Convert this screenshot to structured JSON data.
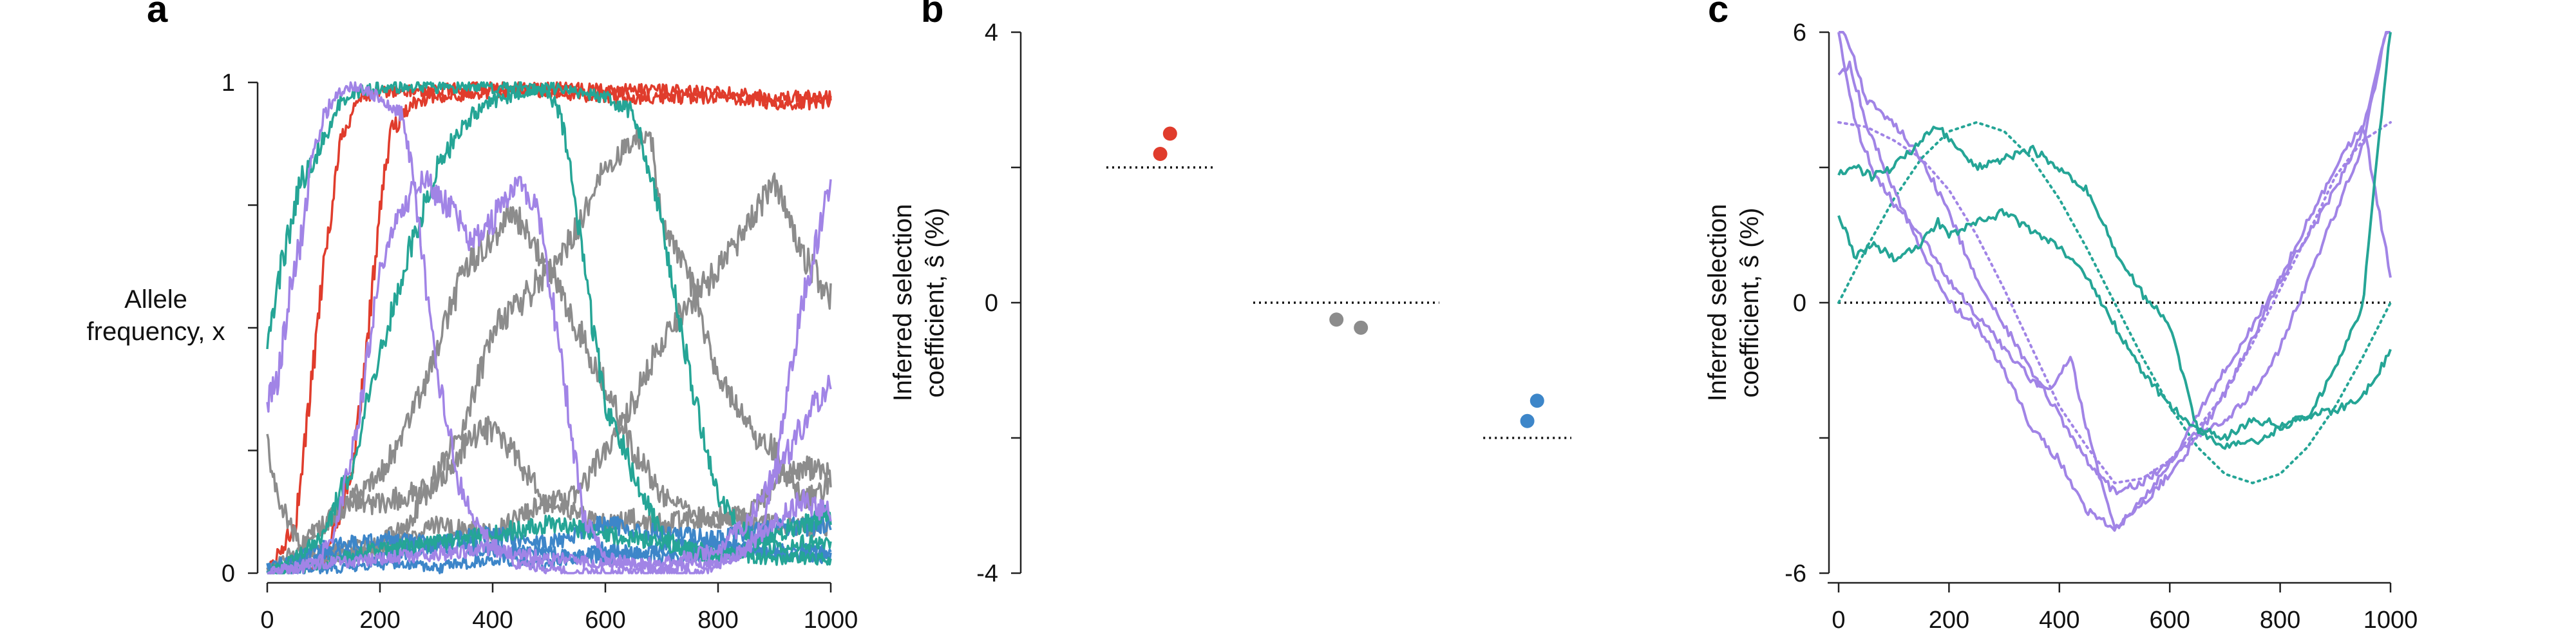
{
  "colors": {
    "red": "#e03c2c",
    "gray": "#8c8c8c",
    "blue": "#3d86c9",
    "teal": "#25a596",
    "purple": "#a184e6"
  },
  "chart_data": [
    {
      "panel": "a",
      "type": "line",
      "ylabel_lines": [
        "Allele",
        "frequency, x"
      ],
      "xlim": [
        0,
        1000
      ],
      "ylim": [
        0,
        1
      ],
      "x_ticks": [
        0,
        200,
        400,
        600,
        800,
        1000
      ],
      "y_ticks": [
        0,
        1
      ],
      "series": [
        {
          "color": "red",
          "x": [
            0,
            50,
            70,
            100,
            130,
            160,
            200,
            300,
            400,
            500,
            600,
            700,
            800,
            900,
            1000
          ],
          "y": [
            0,
            0.1,
            0.3,
            0.62,
            0.88,
            0.97,
            0.98,
            0.985,
            0.99,
            0.99,
            0.985,
            0.985,
            0.98,
            0.97,
            0.97
          ]
        },
        {
          "color": "red",
          "x": [
            0,
            100,
            150,
            180,
            200,
            220,
            260,
            300,
            400,
            500,
            600,
            700,
            800,
            900,
            1000
          ],
          "y": [
            0,
            0.02,
            0.2,
            0.5,
            0.75,
            0.9,
            0.96,
            0.97,
            0.98,
            0.98,
            0.97,
            0.97,
            0.97,
            0.96,
            0.96
          ]
        },
        {
          "color": "gray",
          "x": [
            0,
            20,
            60,
            100,
            150,
            200,
            250,
            300,
            350,
            400,
            450,
            500,
            550,
            600,
            650,
            700,
            750,
            800,
            850,
            900,
            950,
            1000
          ],
          "y": [
            0.26,
            0.15,
            0.05,
            0.1,
            0.15,
            0.14,
            0.16,
            0.18,
            0.26,
            0.3,
            0.22,
            0.14,
            0.16,
            0.25,
            0.35,
            0.47,
            0.55,
            0.62,
            0.7,
            0.8,
            0.65,
            0.56
          ]
        },
        {
          "color": "gray",
          "x": [
            0,
            100,
            150,
            200,
            250,
            300,
            350,
            400,
            450,
            500,
            550,
            600,
            650,
            680,
            700,
            750,
            800,
            850,
            900,
            950,
            1000
          ],
          "y": [
            0,
            0.05,
            0.05,
            0.06,
            0.1,
            0.2,
            0.3,
            0.5,
            0.55,
            0.62,
            0.7,
            0.83,
            0.88,
            0.9,
            0.72,
            0.6,
            0.4,
            0.3,
            0.25,
            0.15,
            0.18
          ]
        },
        {
          "color": "gray",
          "x": [
            0,
            100,
            200,
            250,
            300,
            350,
            400,
            430,
            460,
            500,
            550,
            600,
            650,
            700,
            750,
            800,
            850,
            900,
            950,
            1000
          ],
          "y": [
            0,
            0.1,
            0.2,
            0.3,
            0.45,
            0.62,
            0.68,
            0.74,
            0.7,
            0.62,
            0.5,
            0.38,
            0.25,
            0.16,
            0.12,
            0.1,
            0.12,
            0.18,
            0.22,
            0.2
          ]
        },
        {
          "color": "gray",
          "x": [
            0,
            100,
            200,
            300,
            400,
            450,
            500,
            550,
            600,
            650,
            700,
            800,
            900,
            1000
          ],
          "y": [
            0,
            0.03,
            0.05,
            0.1,
            0.08,
            0.12,
            0.15,
            0.12,
            0.1,
            0.11,
            0.1,
            0.12,
            0.1,
            0.09
          ]
        },
        {
          "color": "blue",
          "x": [
            0,
            100,
            200,
            300,
            400,
            500,
            600,
            700,
            800,
            900,
            1000
          ],
          "y": [
            0,
            0.04,
            0.03,
            0.06,
            0.05,
            0.04,
            0.03,
            0.05,
            0.06,
            0.04,
            0.03
          ]
        },
        {
          "color": "blue",
          "x": [
            0,
            100,
            200,
            300,
            400,
            500,
            600,
            700,
            800,
            900,
            1000
          ],
          "y": [
            0.01,
            0.05,
            0.07,
            0.06,
            0.08,
            0.06,
            0.1,
            0.08,
            0.07,
            0.09,
            0.1
          ]
        },
        {
          "color": "blue",
          "x": [
            0,
            100,
            200,
            300,
            400,
            500,
            600,
            700,
            800,
            900,
            1000
          ],
          "y": [
            0,
            0.01,
            0.02,
            0.01,
            0.03,
            0.02,
            0.05,
            0.03,
            0.04,
            0.05,
            0.04
          ]
        },
        {
          "color": "teal",
          "x": [
            0,
            20,
            40,
            60,
            100,
            130,
            160,
            200,
            300,
            400,
            450,
            500,
            520,
            540,
            570,
            600,
            650,
            700,
            750,
            800,
            850,
            900,
            950,
            1000
          ],
          "y": [
            0.45,
            0.6,
            0.7,
            0.8,
            0.88,
            0.96,
            0.98,
            0.99,
            0.99,
            0.99,
            0.99,
            0.98,
            0.93,
            0.82,
            0.55,
            0.35,
            0.2,
            0.08,
            0.04,
            0.03,
            0.05,
            0.08,
            0.1,
            0.12
          ]
        },
        {
          "color": "teal",
          "x": [
            0,
            50,
            100,
            150,
            200,
            250,
            300,
            350,
            400,
            450,
            500,
            550,
            600,
            650,
            700,
            750,
            800,
            850,
            900,
            950,
            1000
          ],
          "y": [
            0,
            0.03,
            0.08,
            0.22,
            0.45,
            0.65,
            0.82,
            0.92,
            0.96,
            0.98,
            0.99,
            0.98,
            0.97,
            0.94,
            0.72,
            0.4,
            0.15,
            0.08,
            0.05,
            0.06,
            0.06
          ]
        },
        {
          "color": "teal",
          "x": [
            0,
            100,
            200,
            300,
            400,
            500,
            600,
            700,
            800,
            900,
            1000
          ],
          "y": [
            0,
            0.02,
            0.05,
            0.06,
            0.08,
            0.1,
            0.08,
            0.06,
            0.04,
            0.03,
            0.03
          ]
        },
        {
          "color": "purple",
          "x": [
            0,
            20,
            40,
            60,
            80,
            100,
            120,
            140,
            160,
            200,
            240,
            260,
            280,
            300,
            340,
            380,
            420,
            440,
            460,
            480,
            520,
            560,
            600,
            640,
            700,
            760,
            800,
            850,
            900,
            950,
            1000
          ],
          "y": [
            0.35,
            0.4,
            0.58,
            0.68,
            0.85,
            0.93,
            0.97,
            0.99,
            0.99,
            0.97,
            0.93,
            0.8,
            0.6,
            0.42,
            0.18,
            0.08,
            0.04,
            0.02,
            0.02,
            0.01,
            0.01,
            0.0,
            0.0,
            0.0,
            0.0,
            0.0,
            0.02,
            0.05,
            0.1,
            0.15,
            0.12
          ]
        },
        {
          "color": "purple",
          "x": [
            0,
            80,
            120,
            160,
            200,
            240,
            280,
            320,
            360,
            400,
            440,
            480,
            520,
            560,
            600,
            700,
            800,
            850,
            880,
            900,
            920,
            950,
            980,
            1000
          ],
          "y": [
            0,
            0.02,
            0.08,
            0.3,
            0.62,
            0.75,
            0.8,
            0.75,
            0.68,
            0.72,
            0.8,
            0.75,
            0.45,
            0.12,
            0.03,
            0.01,
            0.02,
            0.05,
            0.1,
            0.2,
            0.35,
            0.55,
            0.7,
            0.8
          ]
        },
        {
          "color": "purple",
          "x": [
            0,
            100,
            200,
            300,
            400,
            500,
            600,
            700,
            800,
            850,
            900,
            950,
            1000
          ],
          "y": [
            0,
            0.02,
            0.03,
            0.04,
            0.05,
            0.03,
            0.02,
            0.02,
            0.05,
            0.1,
            0.2,
            0.3,
            0.4
          ]
        }
      ]
    },
    {
      "panel": "b",
      "type": "scatter",
      "ylabel_lines": [
        "Inferred selection",
        "coefficient, ŝ (%)"
      ],
      "ylim": [
        -4,
        4
      ],
      "y_ticks": [
        -4,
        0,
        4
      ],
      "true_values": [
        {
          "color": "red",
          "y": 2.0,
          "x_range": [
            0.05,
            0.27
          ]
        },
        {
          "color": "gray",
          "y": 0.0,
          "x_range": [
            0.35,
            0.73
          ]
        },
        {
          "color": "blue",
          "y": -2.0,
          "x_range": [
            0.82,
            1.0
          ]
        }
      ],
      "points": [
        {
          "color": "red",
          "x": 0.16,
          "y": 2.2
        },
        {
          "color": "red",
          "x": 0.18,
          "y": 2.5
        },
        {
          "color": "gray",
          "x": 0.52,
          "y": -0.25
        },
        {
          "color": "gray",
          "x": 0.57,
          "y": -0.37
        },
        {
          "color": "blue",
          "x": 0.91,
          "y": -1.75
        },
        {
          "color": "blue",
          "x": 0.93,
          "y": -1.45
        }
      ]
    },
    {
      "panel": "c",
      "type": "line",
      "ylabel_lines": [
        "Inferred selection",
        "coefficient, ŝ (%)"
      ],
      "xlim": [
        0,
        1000
      ],
      "ylim": [
        -6,
        6
      ],
      "x_ticks": [
        0,
        200,
        400,
        600,
        800,
        1000
      ],
      "y_ticks": [
        -6,
        0,
        6
      ],
      "dotted_zero": true,
      "true_curves": [
        {
          "color": "purple",
          "x": [
            0,
            50,
            100,
            150,
            200,
            250,
            300,
            350,
            400,
            450,
            500,
            550,
            600,
            650,
            700,
            750,
            800,
            850,
            900,
            950,
            1000
          ],
          "y": [
            4.0,
            3.9,
            3.6,
            3.2,
            2.5,
            1.5,
            0.3,
            -1.0,
            -2.3,
            -3.2,
            -4.0,
            -3.9,
            -3.5,
            -2.8,
            -2.0,
            -0.9,
            0.3,
            1.5,
            2.8,
            3.6,
            4.0
          ]
        },
        {
          "color": "teal",
          "x": [
            0,
            50,
            100,
            150,
            200,
            250,
            300,
            350,
            400,
            450,
            500,
            550,
            600,
            650,
            700,
            750,
            800,
            850,
            900,
            950,
            1000
          ],
          "y": [
            0.0,
            1.2,
            2.3,
            3.2,
            3.8,
            4.0,
            3.8,
            3.2,
            2.3,
            1.2,
            0.0,
            -1.2,
            -2.3,
            -3.2,
            -3.8,
            -4.0,
            -3.8,
            -3.2,
            -2.3,
            -1.2,
            0.0
          ]
        }
      ],
      "series": [
        {
          "color": "purple",
          "x": [
            0,
            20,
            50,
            100,
            150,
            200,
            250,
            300,
            350,
            400,
            450,
            500,
            550,
            600,
            650,
            700,
            750,
            800,
            850,
            900,
            950,
            1000
          ],
          "y": [
            5.0,
            5.3,
            4.0,
            2.5,
            1.2,
            0.0,
            -0.5,
            -1.5,
            -2.8,
            -3.5,
            -4.6,
            -5.0,
            -4.5,
            -3.8,
            -3.0,
            -2.0,
            -0.8,
            0.5,
            1.8,
            3.0,
            4.0,
            0.6
          ]
        },
        {
          "color": "purple",
          "x": [
            0,
            30,
            60,
            100,
            150,
            200,
            250,
            300,
            350,
            380,
            400,
            420,
            450,
            480,
            500,
            550,
            600,
            650,
            700,
            750,
            800,
            850,
            900,
            950,
            1000
          ],
          "y": [
            6.0,
            4.0,
            3.0,
            2.2,
            1.5,
            0.5,
            -0.3,
            -1.0,
            -1.7,
            -2.0,
            -1.6,
            -1.2,
            -2.8,
            -4.2,
            -5.0,
            -4.4,
            -3.6,
            -2.5,
            -1.5,
            -0.5,
            0.5,
            1.5,
            2.5,
            3.8,
            6.5
          ]
        },
        {
          "color": "purple",
          "x": [
            0,
            50,
            80,
            100,
            150,
            200,
            250,
            300,
            350,
            400,
            450,
            500,
            550,
            600,
            650,
            700,
            750,
            800,
            850,
            900,
            950,
            1000
          ],
          "y": [
            6.5,
            4.5,
            4.2,
            4.0,
            3.2,
            2.0,
            0.5,
            -0.5,
            -1.5,
            -2.5,
            -3.5,
            -4.2,
            -4.0,
            -3.5,
            -2.9,
            -2.6,
            -2.0,
            -1.0,
            0.5,
            2.0,
            3.5,
            6.5
          ]
        },
        {
          "color": "teal",
          "x": [
            0,
            30,
            60,
            100,
            150,
            180,
            200,
            250,
            300,
            350,
            400,
            450,
            500,
            550,
            600,
            650,
            700,
            750,
            800,
            850,
            900,
            950,
            1000
          ],
          "y": [
            2.0,
            1.0,
            1.3,
            1.0,
            1.3,
            1.8,
            1.5,
            1.8,
            2.0,
            1.6,
            1.2,
            0.6,
            -0.5,
            -1.5,
            -2.3,
            -2.8,
            -3.0,
            -2.6,
            -2.7,
            -2.5,
            -2.4,
            -2.1,
            -1.1
          ]
        },
        {
          "color": "teal",
          "x": [
            0,
            30,
            60,
            100,
            150,
            180,
            200,
            250,
            300,
            350,
            400,
            450,
            500,
            550,
            600,
            650,
            700,
            750,
            800,
            850,
            900,
            950,
            1000
          ],
          "y": [
            2.9,
            3.0,
            2.8,
            3.0,
            3.6,
            3.9,
            3.6,
            3.0,
            3.2,
            3.4,
            3.0,
            2.5,
            1.2,
            0.2,
            -0.5,
            -2.8,
            -3.2,
            -3.1,
            -2.8,
            -2.5,
            -1.5,
            0.0,
            6.2
          ]
        }
      ]
    }
  ]
}
